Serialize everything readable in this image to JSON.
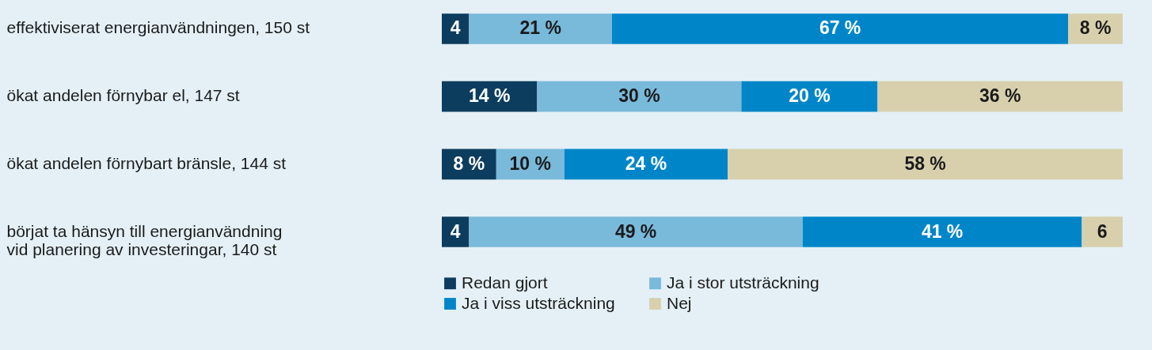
{
  "chart_data": {
    "type": "bar",
    "orientation": "horizontal",
    "stacked": true,
    "legend": "bottom",
    "categories": [
      "effektiviserat energianvändningen, 150 st",
      "ökat andelen förnybar el, 147 st",
      "ökat andelen förnybart bränsle, 144 st",
      "börjat ta hänsyn till energianvändning\nvid planering av investeringar, 140 st"
    ],
    "series": [
      {
        "name": "Redan gjort",
        "color": "#0c3d5e",
        "values": [
          4,
          14,
          8,
          4
        ],
        "value_labels": [
          "4",
          "14 %",
          "8 %",
          "4"
        ]
      },
      {
        "name": "Ja i stor utsträckning",
        "color": "#79b9da",
        "values": [
          21,
          30,
          10,
          49
        ],
        "value_labels": [
          "21 %",
          "30 %",
          "10 %",
          "49 %"
        ]
      },
      {
        "name": "Ja i viss utsträckning",
        "color": "#0086c8",
        "values": [
          67,
          20,
          24,
          41
        ],
        "value_labels": [
          "67 %",
          "20 %",
          "24 %",
          "41 %"
        ]
      },
      {
        "name": "Nej",
        "color": "#d8d0ad",
        "values": [
          8,
          36,
          58,
          6
        ],
        "value_labels": [
          "8 %",
          "36 %",
          "58 %",
          "6"
        ]
      }
    ]
  }
}
